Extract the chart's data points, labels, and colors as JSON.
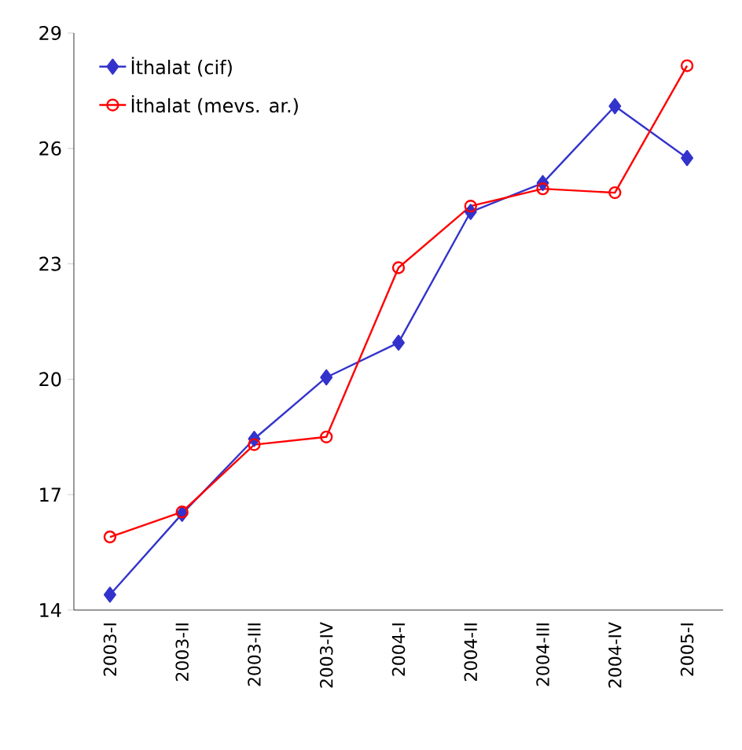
{
  "chart_data": {
    "type": "line",
    "categories": [
      "2003-I",
      "2003-II",
      "2003-III",
      "2003-IV",
      "2004-I",
      "2004-II",
      "2004-III",
      "2004-IV",
      "2005-I"
    ],
    "series": [
      {
        "name": "İthalat (cif)",
        "color": "#3333cc",
        "marker": "diamond",
        "values": [
          14.4,
          16.5,
          18.45,
          20.05,
          20.95,
          24.35,
          25.1,
          27.1,
          25.75
        ]
      },
      {
        "name": "İthalat (mevs. ar.)",
        "color": "#ff0000",
        "marker": "circle",
        "values": [
          15.9,
          16.55,
          18.3,
          18.5,
          22.9,
          24.5,
          24.95,
          24.85,
          28.15
        ]
      }
    ],
    "ylim": [
      14,
      29
    ],
    "yticks": [
      14,
      17,
      20,
      23,
      26,
      29
    ],
    "grid": false,
    "legend": "top left"
  }
}
